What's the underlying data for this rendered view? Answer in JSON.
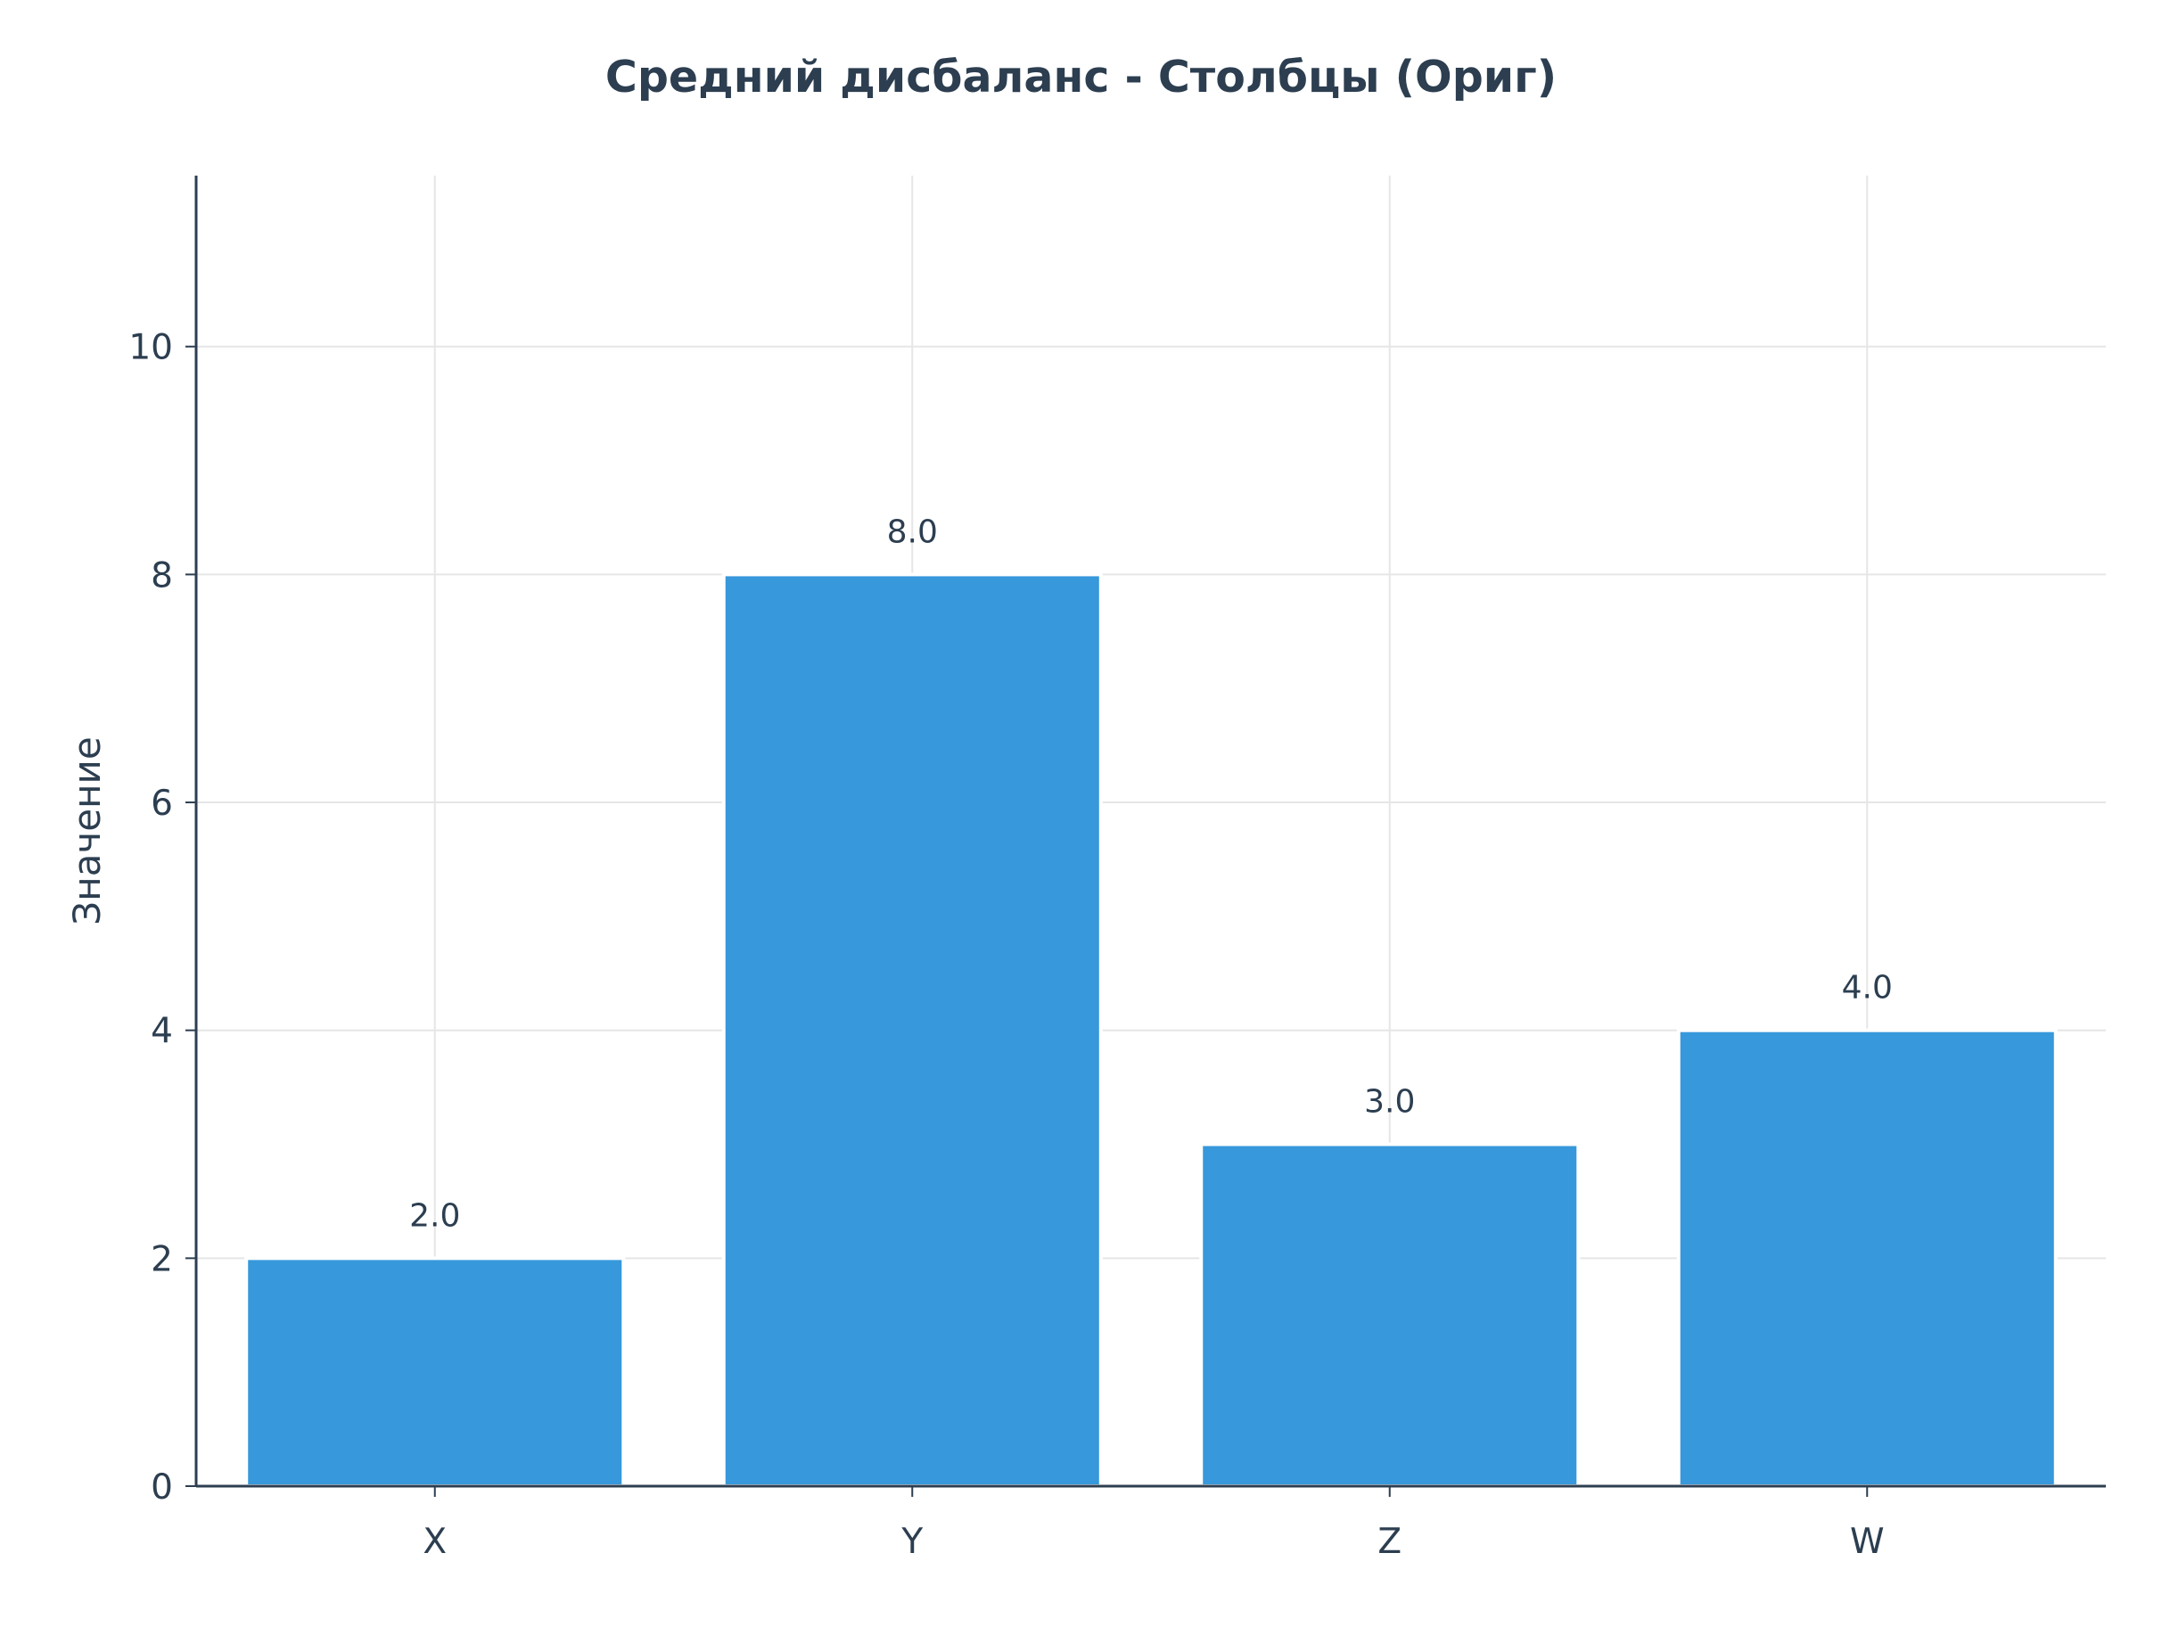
{
  "chart_data": {
    "type": "bar",
    "title": "Средний дисбаланс - Столбцы (Ориг)",
    "xlabel": "",
    "ylabel": "Значение",
    "categories": [
      "X",
      "Y",
      "Z",
      "W"
    ],
    "values": [
      2.0,
      8.0,
      3.0,
      4.0
    ],
    "value_labels": [
      "2.0",
      "8.0",
      "3.0",
      "4.0"
    ],
    "ylim": [
      0,
      11.5
    ],
    "yticks": [
      0,
      2,
      4,
      6,
      8,
      10
    ],
    "grid": true,
    "legend": "none",
    "colors": {
      "bar": "#3798db",
      "text": "#2c3e50",
      "axis": "#2c3e50",
      "grid": "#e6e6e6"
    }
  }
}
